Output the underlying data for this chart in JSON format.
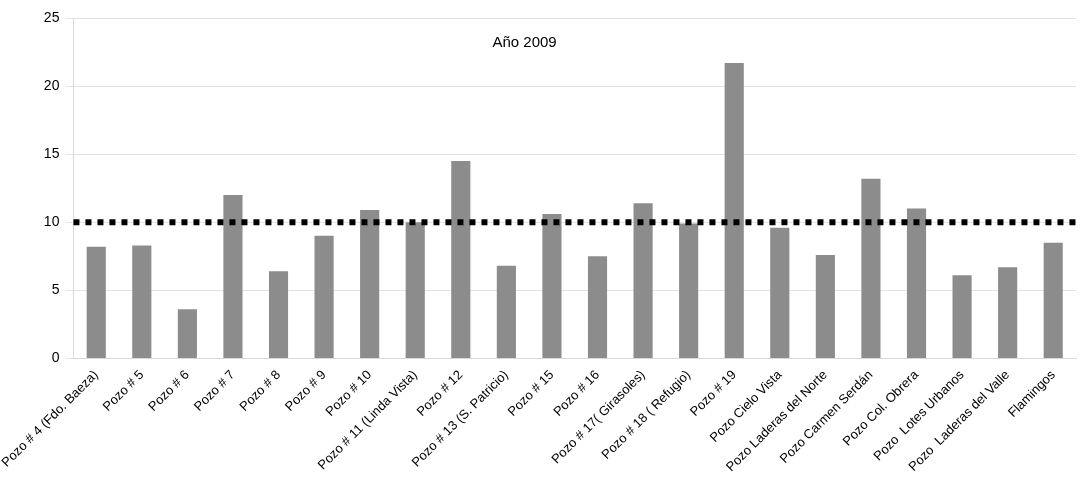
{
  "chart_data": {
    "type": "bar",
    "title": "Año 2009",
    "categories": [
      "Pozo # 4 (Fdo. Baeza)",
      "Pozo # 5",
      "Pozo # 6",
      "Pozo # 7",
      "Pozo # 8",
      "Pozo # 9",
      "Pozo # 10",
      "Pozo # 11 (Linda Vista)",
      "Pozo # 12",
      "Pozo # 13 (S. Patricio)",
      "Pozo # 15",
      "Pozo # 16",
      "Pozo # 17( Girasoles)",
      "Pozo # 18 ( Refugio)",
      "Pozo # 19",
      "Pozo Cielo Vista",
      "Pozo Laderas del Norte",
      "Pozo Carmen Serdán",
      "Pozo Col. Obrera",
      "Pozo  Lotes Urbanos",
      "Pozo  Laderas del Valle",
      "Flamingos"
    ],
    "values": [
      8.2,
      8.3,
      3.6,
      12.0,
      6.4,
      9.0,
      10.9,
      10.0,
      14.5,
      6.8,
      10.6,
      7.5,
      11.4,
      9.9,
      21.7,
      9.6,
      7.6,
      13.2,
      11.0,
      6.1,
      6.7,
      8.5
    ],
    "color": "#8c8c8c",
    "ylim": [
      0,
      25
    ],
    "yticks": [
      0,
      5,
      10,
      15,
      20,
      25
    ],
    "grid": "y",
    "ref_lines": [
      {
        "axis": "y",
        "value": 10,
        "color": "#000000",
        "line_style": "dotted"
      }
    ]
  }
}
